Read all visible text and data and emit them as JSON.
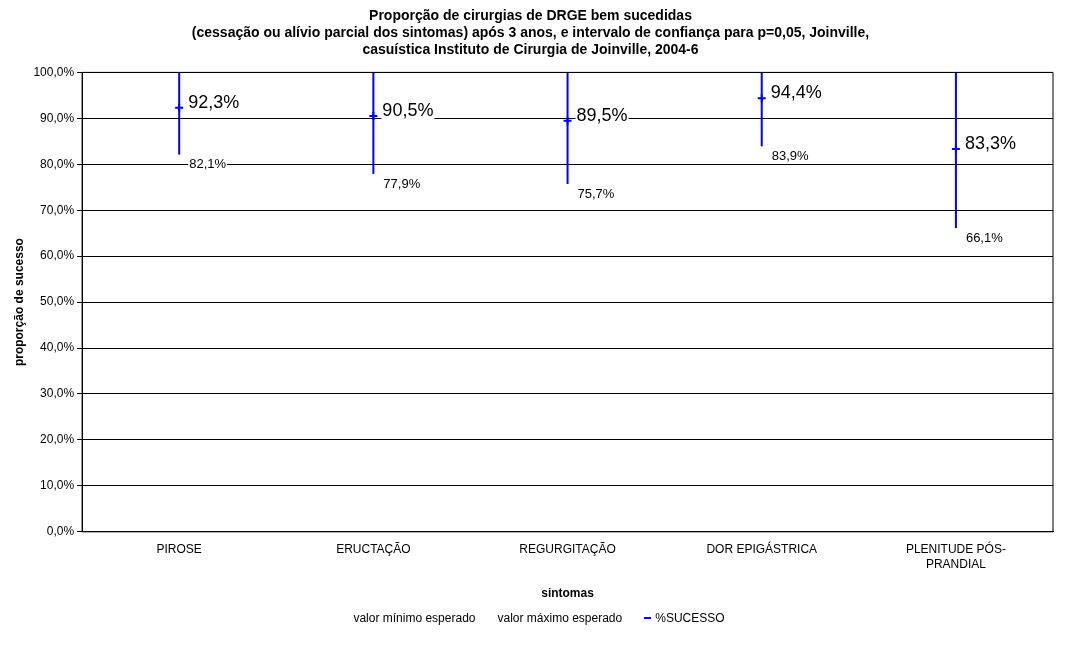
{
  "chart_data": {
    "type": "scatter",
    "title": [
      "Proporção de cirurgias de DRGE bem sucedidas",
      "(cessação ou alívio parcial dos sintomas) após 3 anos, e intervalo de confiança para p=0,05, Joinville,",
      "casuística Instituto de Cirurgia de Joinville, 2004-6"
    ],
    "xlabel": "sintomas",
    "ylabel": "proporção de sucesso",
    "categories": [
      "PIROSE",
      "ERUCTAÇÃO",
      "REGURGITAÇÃO",
      "DOR EPIGÁSTRICA",
      "PLENITUDE PÓS-PRANDIAL"
    ],
    "series": [
      {
        "name": "%SUCESSO",
        "color": "#0000ff",
        "marker": "cross",
        "values": [
          92.3,
          90.5,
          89.5,
          94.4,
          83.3
        ],
        "value_labels": [
          "92,3%",
          "90,5%",
          "89,5%",
          "94,4%",
          "83,3%"
        ],
        "errors": [
          [
            82.1,
            100
          ],
          [
            77.9,
            100
          ],
          [
            75.7,
            100
          ],
          [
            83.9,
            100
          ],
          [
            66.1,
            100
          ]
        ]
      }
    ],
    "annotations": [
      {
        "text": "82,1%",
        "x": "PIROSE",
        "y": 82.1
      },
      {
        "text": "77,9%",
        "x": "ERUCTAÇÃO",
        "y": 77.9
      },
      {
        "text": "75,7%",
        "x": "REGURGITAÇÃO",
        "y": 75.7
      },
      {
        "text": "83,9%",
        "x": "DOR EPIGÁSTRICA",
        "y": 83.9
      },
      {
        "text": "66,1%",
        "x": "PLENITUDE PÓS-PRANDIAL",
        "y": 66.1
      },
      "valor mínimo esperado",
      "valor máximo esperado"
    ],
    "ylim": [
      0,
      100
    ],
    "yticks": [
      {
        "value": 0,
        "label": "0,0%"
      },
      {
        "value": 10,
        "label": "10,0%"
      },
      {
        "value": 20,
        "label": "20,0%"
      },
      {
        "value": 30,
        "label": "30,0%"
      },
      {
        "value": 40,
        "label": "40,0%"
      },
      {
        "value": 50,
        "label": "50,0%"
      },
      {
        "value": 60,
        "label": "60,0%"
      },
      {
        "value": 70,
        "label": "70,0%"
      },
      {
        "value": 80,
        "label": "80,0%"
      },
      {
        "value": 90,
        "label": "90,0%"
      },
      {
        "value": 100,
        "label": "100,0%"
      }
    ],
    "grid": "y",
    "legend": "bottom"
  }
}
